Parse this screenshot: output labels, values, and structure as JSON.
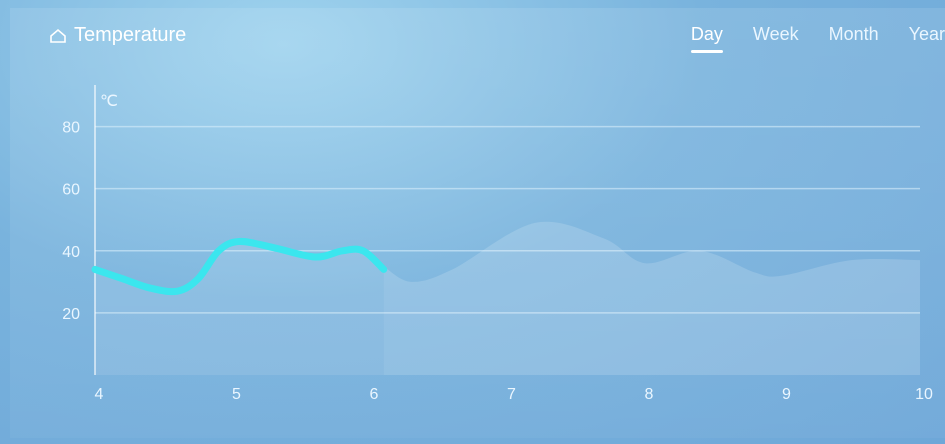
{
  "header": {
    "title": "Temperature",
    "tabs": [
      {
        "label": "Day",
        "active": true
      },
      {
        "label": "Week",
        "active": false
      },
      {
        "label": "Month",
        "active": false
      },
      {
        "label": "Year",
        "active": false
      }
    ]
  },
  "icons": {
    "title_icon": "home-icon"
  },
  "colors": {
    "accent_line": "#3be6ee",
    "background": "#79b3dd",
    "grid": "#d7ecfa"
  },
  "chart_data": {
    "type": "line",
    "ylabel": "℃",
    "xlim": [
      4,
      10
    ],
    "ylim": [
      0,
      95
    ],
    "yticks": [
      "80",
      "60",
      "40",
      "20"
    ],
    "xticks": [
      "4",
      "5",
      "6",
      "7",
      "8",
      "9",
      "10"
    ],
    "grid": true,
    "series": [
      {
        "values_x": [
          4.0,
          4.2,
          4.4,
          4.6,
          4.75,
          4.9,
          5.05,
          5.3,
          5.6,
          5.8,
          5.95,
          6.1
        ],
        "values_y": [
          34,
          31,
          28,
          27,
          31,
          40,
          43,
          41,
          38,
          40,
          40,
          34
        ]
      }
    ],
    "background_area": {
      "x": [
        6.1,
        6.3,
        6.6,
        7.2,
        7.7,
        8.0,
        8.4,
        8.8,
        9.0,
        9.5,
        10.0
      ],
      "y": [
        35,
        30,
        34,
        49,
        44,
        36,
        40,
        33,
        32,
        37,
        37
      ]
    }
  }
}
